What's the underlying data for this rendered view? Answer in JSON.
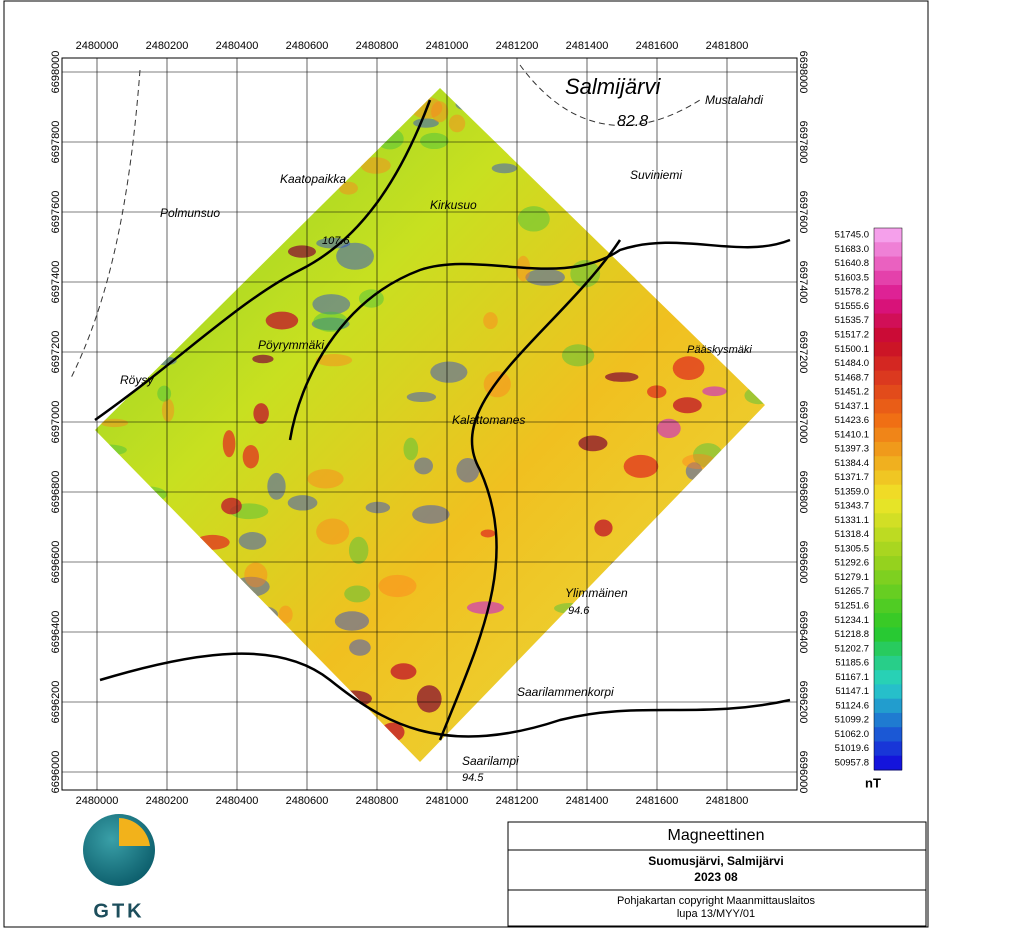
{
  "map": {
    "x_labels": [
      "2480000",
      "2480200",
      "2480400",
      "2480600",
      "2480800",
      "2481000",
      "2481200",
      "2481400",
      "2481600",
      "2481800"
    ],
    "y_labels": [
      "6698000",
      "6697800",
      "6697600",
      "6697400",
      "6697200",
      "6697000",
      "6696800",
      "6696600",
      "6696400",
      "6696200",
      "6696000"
    ],
    "places": [
      {
        "label": "Salmijärvi"
      },
      {
        "label": "82.8"
      },
      {
        "label": "Mustalahdi"
      },
      {
        "label": "Suviniemi"
      },
      {
        "label": "Kaatopaikka"
      },
      {
        "label": "Kirkusuo"
      },
      {
        "label": "Polmunsuo"
      },
      {
        "label": "107.6"
      },
      {
        "label": "Pöyrymmäki"
      },
      {
        "label": "Röysy"
      },
      {
        "label": "Pääskysmäki"
      },
      {
        "label": "Kalattomanes"
      },
      {
        "label": "Ylimmäinen"
      },
      {
        "label": "94.6"
      },
      {
        "label": "Saarilammenkorpi"
      },
      {
        "label": "Saarilampi"
      },
      {
        "label": "94.5"
      }
    ]
  },
  "legend": {
    "unit": "nT",
    "labels": [
      "51745.0",
      "51683.0",
      "51640.8",
      "51603.5",
      "51578.2",
      "51555.6",
      "51535.7",
      "51517.2",
      "51500.1",
      "51484.0",
      "51468.7",
      "51451.2",
      "51437.1",
      "51423.6",
      "51410.1",
      "51397.3",
      "51384.4",
      "51371.7",
      "51359.0",
      "51343.7",
      "51331.1",
      "51318.4",
      "51305.5",
      "51292.6",
      "51279.1",
      "51265.7",
      "51251.6",
      "51234.1",
      "51218.8",
      "51202.7",
      "51185.6",
      "51167.1",
      "51147.1",
      "51124.6",
      "51099.2",
      "51062.0",
      "51019.6",
      "50957.8"
    ]
  },
  "title_block": {
    "title": "Magneettinen",
    "area": "Suomusjärvi, Salmijärvi",
    "date": "2023 08",
    "copyright": "Pohjakartan copyright Maanmittauslaitos",
    "permit": "lupa 13/MYY/01"
  },
  "logo": {
    "text": "GTK"
  }
}
